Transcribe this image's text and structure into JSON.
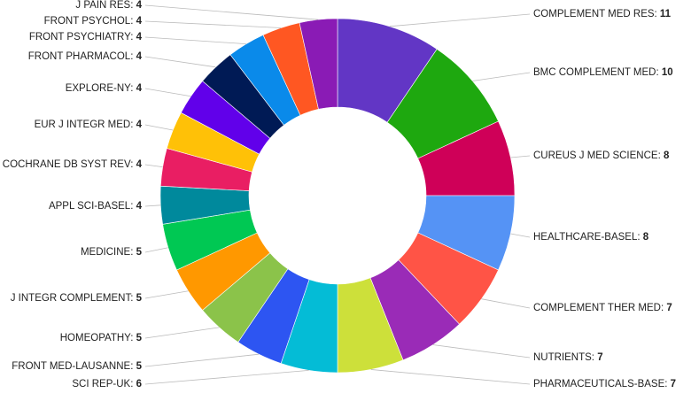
{
  "chart_data": {
    "type": "pie",
    "subtype": "donut",
    "title": "",
    "label_format": "name: value",
    "slices": [
      {
        "label": "COMPLEMENT MED RES",
        "value": 11,
        "color": "#6236c5"
      },
      {
        "label": "BMC COMPLEMENT MED",
        "value": 10,
        "color": "#1ea80f"
      },
      {
        "label": "CUREUS J MED SCIENCE",
        "value": 8,
        "color": "#cf0058"
      },
      {
        "label": "HEALTHCARE-BASEL",
        "value": 8,
        "color": "#5593f5"
      },
      {
        "label": "COMPLEMENT THER MED",
        "value": 7,
        "color": "#ff5446"
      },
      {
        "label": "NUTRIENTS",
        "value": 7,
        "color": "#9a2bb7"
      },
      {
        "label": "PHARMACEUTICALS-BASE",
        "value": 7,
        "color": "#cde03a"
      },
      {
        "label": "SCI REP-UK",
        "value": 6,
        "color": "#04bcd6"
      },
      {
        "label": "FRONT MED-LAUSANNE",
        "value": 5,
        "color": "#2d55f2"
      },
      {
        "label": "HOMEOPATHY",
        "value": 5,
        "color": "#8bc34a"
      },
      {
        "label": "J INTEGR COMPLEMENT",
        "value": 5,
        "color": "#ff9800"
      },
      {
        "label": "MEDICINE",
        "value": 5,
        "color": "#00c853"
      },
      {
        "label": "APPL SCI-BASEL",
        "value": 4,
        "color": "#00899c"
      },
      {
        "label": "COCHRANE DB SYST REV",
        "value": 4,
        "color": "#e91e63"
      },
      {
        "label": "EUR J INTEGR MED",
        "value": 4,
        "color": "#ffc107"
      },
      {
        "label": "EXPLORE-NY",
        "value": 4,
        "color": "#6100ea"
      },
      {
        "label": "FRONT PHARMACOL",
        "value": 4,
        "color": "#001a55"
      },
      {
        "label": "FRONT PSYCHIATRY",
        "value": 4,
        "color": "#0a8aea"
      },
      {
        "label": "FRONT PSYCHOL",
        "value": 4,
        "color": "#ff5722"
      },
      {
        "label": "J PAIN RES",
        "value": 4,
        "color": "#8a1bb5"
      }
    ]
  }
}
